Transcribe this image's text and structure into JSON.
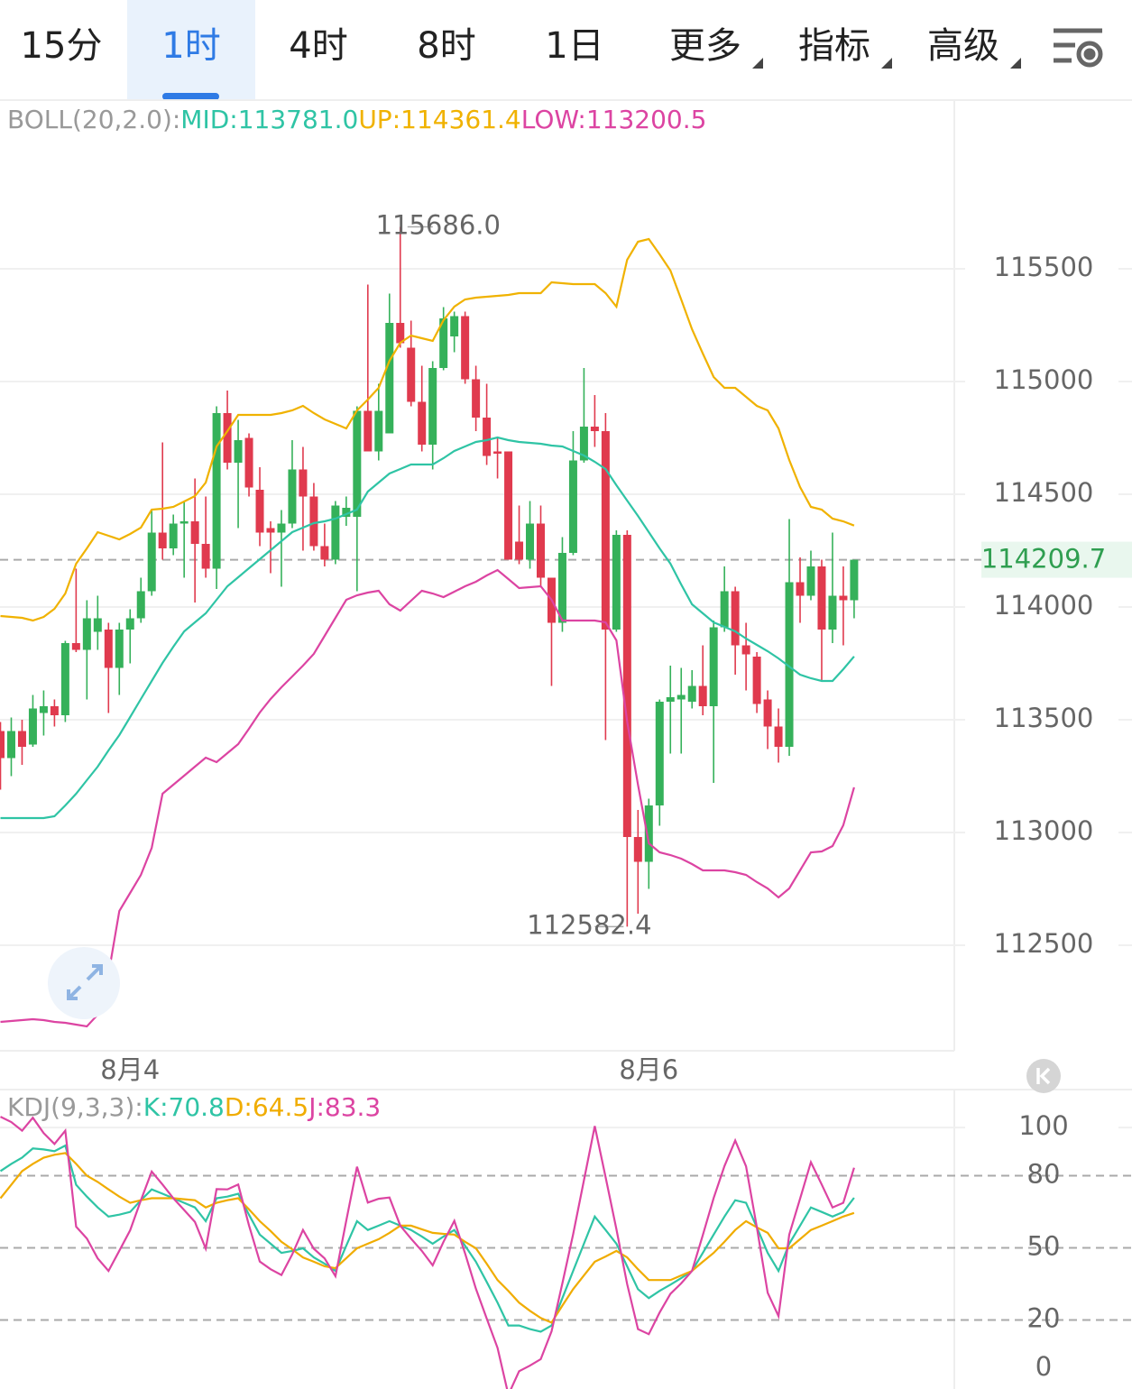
{
  "tabs": [
    "15分",
    "1时",
    "4时",
    "8时",
    "1日",
    "更多",
    "指标",
    "高级"
  ],
  "chart_data": [
    {
      "type": "candlestick",
      "title": "BOLL(20,2.0):",
      "categories": [
        null,
        null,
        null,
        null,
        null,
        null,
        null,
        null,
        null,
        null,
        null,
        null,
        "8月4",
        null,
        null,
        null,
        null,
        null,
        null,
        null,
        null,
        null,
        null,
        null,
        null,
        null,
        null,
        null,
        null,
        null,
        null,
        null,
        null,
        null,
        null,
        null,
        null,
        null,
        null,
        null,
        null,
        null,
        null,
        null,
        null,
        null,
        null,
        null,
        null,
        null,
        null,
        null,
        null,
        null,
        null,
        null,
        null,
        null,
        null,
        null,
        "8月6",
        null,
        null,
        null,
        null,
        null,
        null,
        null,
        null,
        null,
        null,
        null,
        null,
        null,
        null,
        null,
        null,
        null,
        null,
        null
      ],
      "open": [
        113450,
        113330,
        113450,
        113390,
        113530,
        113560,
        113520,
        113840,
        113810,
        113890,
        113900,
        113730,
        113900,
        113950,
        114070,
        114330,
        114260,
        114370,
        114380,
        114280,
        114170,
        114860,
        114640,
        114750,
        114520,
        114350,
        114330,
        114370,
        114610,
        114490,
        114270,
        114210,
        114400,
        114400,
        114870,
        114690,
        114770,
        115260,
        115150,
        114910,
        114720,
        115060,
        115200,
        115290,
        115010,
        114840,
        114690,
        114690,
        114290,
        114210,
        114370,
        114130,
        113930,
        114240,
        114650,
        114800,
        114780,
        113900,
        114320,
        112980,
        112870,
        113120,
        113580,
        113590,
        113580,
        113650,
        113560,
        113910,
        114070,
        113830,
        113780,
        113590,
        113470,
        113380,
        114110,
        114050,
        114180,
        113900,
        114050,
        114030
      ],
      "high": [
        113490,
        113510,
        113500,
        113610,
        113630,
        113590,
        113850,
        114170,
        114030,
        114050,
        113930,
        113930,
        113990,
        114130,
        114430,
        114730,
        114410,
        114470,
        114570,
        114490,
        114890,
        114960,
        114830,
        114770,
        114620,
        114380,
        114430,
        114740,
        114710,
        114550,
        114370,
        114470,
        114490,
        114890,
        115430,
        114990,
        115390,
        115686.0,
        115270,
        115070,
        115090,
        115330,
        115310,
        115310,
        115070,
        114990,
        114750,
        114690,
        114450,
        114470,
        114450,
        114130,
        114310,
        114780,
        115060,
        114940,
        114860,
        114340,
        114340,
        113100,
        113150,
        113590,
        113740,
        113730,
        113720,
        113830,
        113940,
        114180,
        114090,
        113930,
        113800,
        113630,
        113550,
        114390,
        114220,
        114250,
        114210,
        114330,
        114180,
        114209.7
      ],
      "low": [
        113190,
        113250,
        113300,
        113380,
        113430,
        113470,
        113490,
        113800,
        113590,
        113810,
        113530,
        113610,
        113750,
        113930,
        114050,
        114210,
        114230,
        114130,
        114020,
        114130,
        114080,
        114610,
        114350,
        114490,
        114270,
        114150,
        114090,
        114350,
        114250,
        114250,
        114180,
        114190,
        114360,
        114070,
        114690,
        114650,
        114770,
        115150,
        114890,
        114690,
        114610,
        115050,
        115130,
        114990,
        114780,
        114630,
        114570,
        114210,
        114190,
        114170,
        114090,
        113650,
        113890,
        114230,
        114640,
        114710,
        113410,
        113890,
        112582.4,
        112640,
        112750,
        113030,
        113350,
        113350,
        113550,
        113520,
        113220,
        113890,
        113700,
        113630,
        113530,
        113370,
        113310,
        113340,
        113930,
        114030,
        113670,
        113840,
        113830,
        113950
      ],
      "close": [
        113330,
        113450,
        113380,
        113550,
        113560,
        113520,
        113840,
        113810,
        113950,
        113950,
        113730,
        113900,
        113950,
        114070,
        114330,
        114260,
        114370,
        114380,
        114280,
        114170,
        114860,
        114640,
        114740,
        114530,
        114330,
        114330,
        114370,
        114610,
        114490,
        114270,
        114210,
        114450,
        114440,
        114870,
        114690,
        114870,
        115260,
        115170,
        114910,
        114720,
        115060,
        115280,
        115290,
        115010,
        114840,
        114670,
        114680,
        114210,
        114210,
        114370,
        114130,
        113930,
        114240,
        114650,
        114800,
        114780,
        113900,
        114320,
        112980,
        112870,
        113120,
        113580,
        113600,
        113610,
        113650,
        113560,
        113910,
        114070,
        113830,
        113790,
        113570,
        113470,
        113380,
        114110,
        114050,
        114180,
        113900,
        114050,
        114030,
        114209.7
      ],
      "up_color": "#35b15a",
      "down_color": "#e03a4e",
      "series": [
        {
          "name": "MID:113781.0",
          "color": "#2fc4a5",
          "values": [
            113064,
            113064,
            113064,
            113064,
            113064,
            113072,
            113120,
            113172,
            113232,
            113292,
            113364,
            113432,
            113512,
            113592,
            113672,
            113752,
            113824,
            113892,
            113932,
            113972,
            114032,
            114092,
            114132,
            114172,
            114212,
            114252,
            114292,
            114332,
            114352,
            114372,
            114380,
            114392,
            114412,
            114432,
            114512,
            114552,
            114592,
            114612,
            114632,
            114632,
            114632,
            114660,
            114692,
            114712,
            114732,
            114740,
            114752,
            114740,
            114732,
            114728,
            114724,
            114716,
            114712,
            114692,
            114672,
            114644,
            114612,
            114540,
            114472,
            114404,
            114332,
            114260,
            114192,
            114100,
            114012,
            113972,
            113932,
            113912,
            113892,
            113860,
            113832,
            113804,
            113772,
            113736,
            113700,
            113684,
            113672,
            113672,
            113724,
            113781.0
          ]
        },
        {
          "name": "UP:114361.4",
          "color": "#f0b200",
          "values": [
            113960,
            113956,
            113952,
            113940,
            113956,
            113992,
            114060,
            114192,
            114260,
            114332,
            114316,
            114300,
            114324,
            114352,
            114432,
            114436,
            114444,
            114468,
            114492,
            114552,
            114712,
            114780,
            114852,
            114852,
            114852,
            114852,
            114860,
            114872,
            114892,
            114860,
            114832,
            114812,
            114792,
            114872,
            114920,
            114972,
            115092,
            115172,
            115204,
            115192,
            115180,
            115272,
            115332,
            115364,
            115372,
            115376,
            115380,
            115384,
            115392,
            115392,
            115392,
            115440,
            115436,
            115432,
            115432,
            115432,
            115392,
            115332,
            115540,
            115620,
            115632,
            115564,
            115492,
            115364,
            115232,
            115124,
            115020,
            114972,
            114972,
            114932,
            114892,
            114872,
            114792,
            114652,
            114532,
            114444,
            114432,
            114392,
            114380,
            114361.4
          ]
        },
        {
          "name": "LOW:113200.5",
          "color": "#dc44a2",
          "values": [
            112160,
            112164,
            112168,
            112172,
            112168,
            112160,
            112156,
            112148,
            112140,
            112192,
            112372,
            112652,
            112732,
            112812,
            112932,
            113172,
            113212,
            113252,
            113292,
            113332,
            113312,
            113352,
            113392,
            113460,
            113532,
            113592,
            113644,
            113692,
            113740,
            113792,
            113872,
            113952,
            114032,
            114052,
            114064,
            114072,
            114012,
            113984,
            114028,
            114072,
            114060,
            114044,
            114068,
            114092,
            114112,
            114140,
            114164,
            114124,
            114084,
            114088,
            114092,
            114032,
            113940,
            113940,
            113940,
            113940,
            113932,
            113852,
            113492,
            113212,
            112952,
            112912,
            112900,
            112884,
            112860,
            112832,
            112832,
            112832,
            112824,
            112812,
            112780,
            112752,
            112712,
            112752,
            112832,
            112912,
            112916,
            112940,
            113032,
            113200.5
          ]
        }
      ],
      "ylim": [
        112032,
        116244
      ],
      "yticks": [
        112500,
        113000,
        113500,
        114000,
        114500,
        115000,
        115500
      ],
      "grid": true,
      "last_price": {
        "value": 114209.7,
        "label": "114209.7"
      },
      "annotations": [
        {
          "value": 115686.0,
          "label": "115686.0"
        },
        {
          "value": 112582.4,
          "label": "112582.4"
        }
      ]
    },
    {
      "type": "line",
      "title": "KDJ(9,3,3):",
      "series": [
        {
          "name": "K:70.8",
          "color": "#2fc4a5",
          "values": [
            81.9,
            84.9,
            87.5,
            91.3,
            90.9,
            90.2,
            92.5,
            76.2,
            71.3,
            66.8,
            63.0,
            63.8,
            64.9,
            69.8,
            74.3,
            72.5,
            70.6,
            68.7,
            66.8,
            61.1,
            70.6,
            71.3,
            72.5,
            63.8,
            55.5,
            51.7,
            47.9,
            48.7,
            49.8,
            46.0,
            43.4,
            40.4,
            50.9,
            61.1,
            57.4,
            59.2,
            61.1,
            59.2,
            57.4,
            54.7,
            51.7,
            54.7,
            57.4,
            50.9,
            44.2,
            35.8,
            27.2,
            17.7,
            17.7,
            16.2,
            15.1,
            17.7,
            29.1,
            40.4,
            51.7,
            63.0,
            57.4,
            51.7,
            42.3,
            32.8,
            29.1,
            32.1,
            34.7,
            37.4,
            40.4,
            47.9,
            55.5,
            63.0,
            69.8,
            68.7,
            58.5,
            47.9,
            40.4,
            51.7,
            59.2,
            66.8,
            64.9,
            63.0,
            64.9,
            70.8
          ]
        },
        {
          "name": "D:64.5",
          "color": "#f0ac00",
          "values": [
            70.6,
            76.2,
            81.9,
            84.9,
            87.5,
            88.7,
            89.4,
            84.9,
            80.0,
            77.4,
            74.3,
            71.3,
            68.7,
            69.8,
            70.6,
            70.6,
            70.6,
            70.2,
            69.8,
            66.8,
            68.7,
            69.8,
            70.6,
            66.0,
            61.1,
            57.0,
            52.5,
            49.4,
            46.0,
            44.2,
            42.3,
            41.5,
            45.7,
            49.8,
            51.7,
            53.6,
            56.2,
            59.2,
            59.2,
            57.7,
            56.2,
            55.8,
            55.5,
            52.5,
            49.8,
            43.4,
            36.6,
            32.1,
            27.2,
            23.8,
            20.8,
            18.9,
            26.0,
            32.8,
            38.5,
            44.2,
            46.4,
            48.7,
            46.0,
            41.1,
            36.6,
            36.6,
            36.6,
            38.5,
            40.4,
            44.2,
            47.9,
            52.5,
            57.4,
            61.1,
            58.5,
            56.2,
            49.8,
            49.8,
            53.6,
            57.4,
            59.2,
            61.1,
            63.0,
            64.5
          ]
        },
        {
          "name": "J:83.3",
          "color": "#dc44a2",
          "values": [
            104.5,
            102.3,
            98.7,
            104.1,
            97.7,
            93.2,
            98.7,
            58.8,
            53.9,
            45.6,
            40.4,
            48.8,
            57.3,
            69.8,
            81.7,
            76.3,
            70.6,
            65.7,
            60.8,
            49.7,
            74.4,
            74.3,
            76.3,
            59.4,
            44.3,
            41.1,
            38.7,
            47.3,
            57.4,
            49.6,
            45.6,
            38.2,
            61.3,
            83.7,
            68.8,
            70.4,
            70.9,
            59.2,
            53.8,
            48.7,
            42.7,
            52.5,
            61.2,
            47.7,
            33.0,
            20.6,
            8.4,
            -11.1,
            -1.3,
            1.0,
            3.7,
            15.3,
            35.3,
            55.6,
            78.1,
            100.6,
            79.4,
            57.7,
            34.9,
            16.2,
            14.1,
            23.1,
            30.9,
            35.2,
            40.4,
            55.3,
            70.7,
            84.0,
            94.6,
            83.9,
            58.5,
            31.3,
            21.6,
            55.5,
            70.4,
            85.6,
            76.3,
            66.8,
            68.7,
            83.3
          ]
        }
      ],
      "ylim": [
        -8.7,
        115.8
      ],
      "yticks": [
        0,
        20,
        50,
        80,
        100
      ]
    }
  ]
}
